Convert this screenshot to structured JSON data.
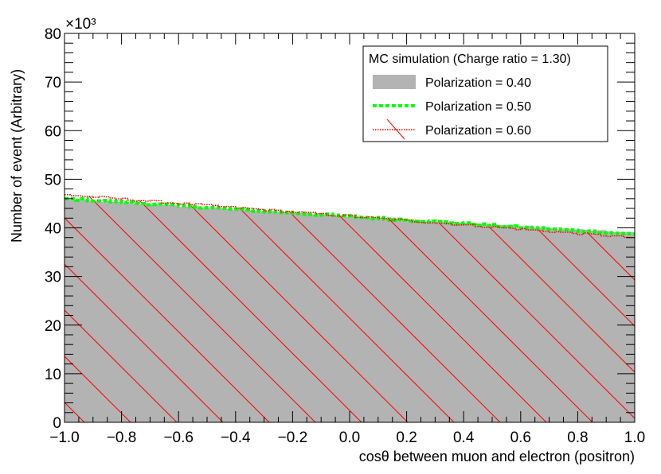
{
  "chart_data": {
    "type": "histogram",
    "xlabel": "cosθ between muon and electron (positron)",
    "ylabel": "Number of event (Arbitrary)",
    "y_multiplier": "×10³",
    "xlim": [
      -1.0,
      1.0
    ],
    "ylim": [
      0,
      80
    ],
    "x_ticks": [
      -1.0,
      -0.8,
      -0.6,
      -0.4,
      -0.2,
      0.0,
      0.2,
      0.4,
      0.6,
      0.8,
      1.0
    ],
    "x_tick_labels": [
      "−1.0",
      "−0.8",
      "−0.6",
      "−0.4",
      "−0.2",
      "0.0",
      "0.2",
      "0.4",
      "0.6",
      "0.8",
      "1.0"
    ],
    "y_ticks": [
      0,
      10,
      20,
      30,
      40,
      50,
      60,
      70,
      80
    ],
    "y_tick_labels": [
      "0",
      "10",
      "20",
      "30",
      "40",
      "50",
      "60",
      "70",
      "80"
    ],
    "bins": 100,
    "legend": {
      "title": "MC simulation (Charge ratio = 1.30)",
      "placement": "top-right"
    },
    "series": [
      {
        "name": "Polarization = 0.40",
        "style": "filled",
        "color": "#b3b3b3",
        "start": 45.8,
        "end": 39.0
      },
      {
        "name": "Polarization = 0.50",
        "style": "dashed-line",
        "color": "#00ff00",
        "start": 46.0,
        "end": 38.7
      },
      {
        "name": "Polarization = 0.60",
        "style": "dotted-line-hatched",
        "color": "#ff0000",
        "start": 46.8,
        "end": 38.0
      }
    ]
  }
}
